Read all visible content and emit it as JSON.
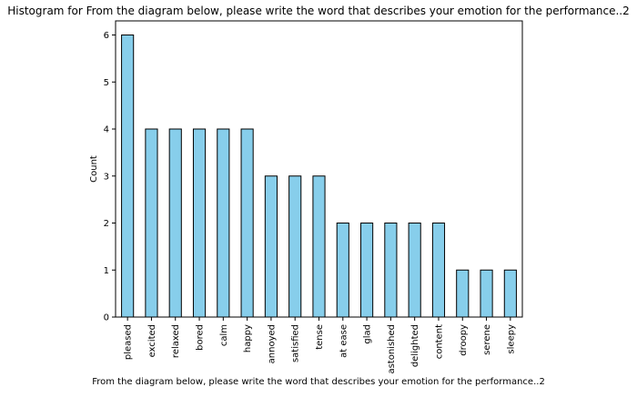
{
  "chart_data": {
    "type": "bar",
    "title": "Histogram for From the diagram below, please write the word that describes your emotion for the performance..2",
    "xlabel": "From the diagram below, please write the word that describes your emotion for the performance..2",
    "ylabel": "Count",
    "categories": [
      "pleased",
      "excited",
      "relaxed",
      "bored",
      "calm",
      "happy",
      "annoyed",
      "satisfied",
      "tense",
      "at ease",
      "glad",
      "astonished",
      "delighted",
      "content",
      "droopy",
      "serene",
      "sleepy"
    ],
    "values": [
      6,
      4,
      4,
      4,
      4,
      4,
      3,
      3,
      3,
      2,
      2,
      2,
      2,
      2,
      1,
      1,
      1
    ],
    "ylim": [
      0,
      6.3
    ],
    "yticks": [
      0,
      1,
      2,
      3,
      4,
      5,
      6
    ],
    "grid": false,
    "bar_color": "#87ceeb",
    "edge_color": "#000000"
  }
}
